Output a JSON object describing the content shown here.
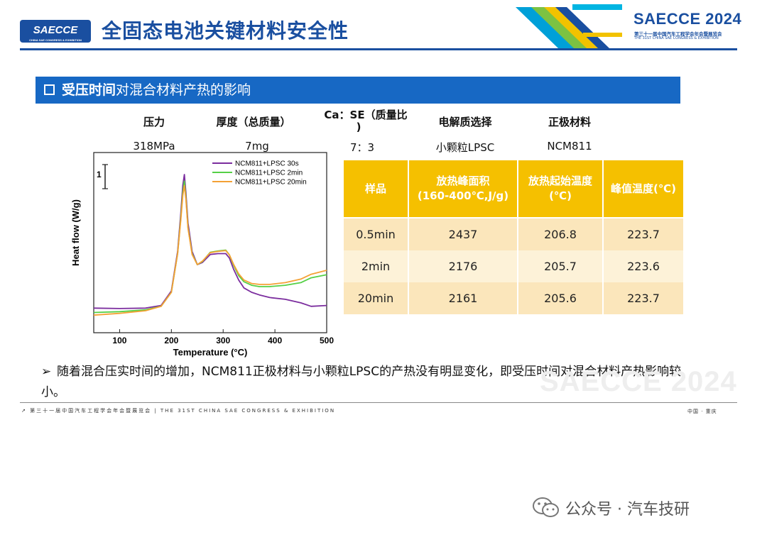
{
  "header": {
    "logo_text": "SAECCE",
    "logo_sub": "CHINA SAE CONGRESS & EXHIBITION",
    "title": "全固态电池关键材料安全性",
    "brand_title": "SAECCE 2024",
    "brand_sub1": "第三十一届中国汽车工程学会年会暨展览会",
    "brand_sub2": "THE 31ST CHINA SAE CONGRESS & EXHIBITION",
    "stripe_colors": [
      "#00a0d8",
      "#f2c200",
      "#7cc242",
      "#1a4fa0",
      "#00b5e2"
    ]
  },
  "section": {
    "bold": "受压时间",
    "rest": "对混合材料产热的影响"
  },
  "params": {
    "headers": [
      "压力",
      "厚度（总质量）",
      "Ca：SE（质量比",
      ")",
      "电解质选择",
      "正极材料"
    ],
    "values": [
      "318MPa",
      "7mg",
      "7：3",
      "小颗粒LPSC",
      "NCM811"
    ]
  },
  "table": {
    "headers": [
      "样品",
      "放热峰面积",
      "(160-400℃,J/g)",
      "放热起始温度",
      "(℃)",
      "峰值温度(℃)"
    ],
    "rows": [
      [
        "0.5min",
        "2437",
        "206.8",
        "223.7"
      ],
      [
        "2min",
        "2176",
        "205.7",
        "223.6"
      ],
      [
        "20min",
        "2161",
        "205.6",
        "223.7"
      ]
    ]
  },
  "chart_data": {
    "type": "line",
    "xlabel": "Temperature (°C)",
    "ylabel": "Heat flow (W/g)",
    "xlim": [
      50,
      500
    ],
    "xticks": [
      100,
      200,
      300,
      400,
      500
    ],
    "scale_label": "1",
    "legend_position": "top-right",
    "series": [
      {
        "name": "NCM811+LPSC 30s",
        "color": "#7b2d9e",
        "x": [
          50,
          100,
          150,
          180,
          200,
          212,
          218,
          222,
          225,
          228,
          232,
          240,
          250,
          260,
          275,
          290,
          305,
          312,
          320,
          330,
          340,
          355,
          370,
          390,
          420,
          450,
          470,
          500
        ],
        "y": [
          0.06,
          0.05,
          0.06,
          0.12,
          0.45,
          1.35,
          2.2,
          2.85,
          3.1,
          2.7,
          2.0,
          1.35,
          1.05,
          1.1,
          1.28,
          1.3,
          1.3,
          1.2,
          0.95,
          0.7,
          0.52,
          0.42,
          0.36,
          0.3,
          0.26,
          0.18,
          0.1,
          0.12
        ]
      },
      {
        "name": "NCM811+LPSC 2min",
        "color": "#55d046",
        "x": [
          50,
          100,
          150,
          180,
          200,
          212,
          218,
          222,
          225,
          228,
          232,
          240,
          250,
          260,
          275,
          290,
          305,
          312,
          320,
          330,
          340,
          355,
          370,
          390,
          420,
          450,
          470,
          500
        ],
        "y": [
          -0.04,
          -0.02,
          0.02,
          0.1,
          0.42,
          1.3,
          2.1,
          2.7,
          2.95,
          2.6,
          1.9,
          1.3,
          1.05,
          1.12,
          1.33,
          1.36,
          1.38,
          1.27,
          1.04,
          0.8,
          0.66,
          0.58,
          0.55,
          0.55,
          0.58,
          0.64,
          0.75,
          0.82
        ]
      },
      {
        "name": "NCM811+LPSC 20min",
        "color": "#f4a135",
        "x": [
          50,
          100,
          150,
          180,
          200,
          212,
          218,
          222,
          225,
          228,
          232,
          240,
          250,
          260,
          275,
          290,
          305,
          312,
          320,
          330,
          340,
          355,
          370,
          390,
          420,
          450,
          470,
          500
        ],
        "y": [
          -0.1,
          -0.06,
          0.0,
          0.1,
          0.42,
          1.3,
          2.05,
          2.62,
          2.85,
          2.55,
          1.88,
          1.28,
          1.05,
          1.13,
          1.32,
          1.35,
          1.37,
          1.27,
          1.06,
          0.84,
          0.7,
          0.62,
          0.6,
          0.6,
          0.64,
          0.72,
          0.83,
          0.92
        ]
      }
    ]
  },
  "bullet": {
    "marker": "➢",
    "text": "随着混合压实时间的增加，NCM811正极材料与小颗粒LPSC的产热没有明显变化，即受压时间对混合材料产热影响较小。"
  },
  "footer": {
    "left": "↗ 第三十一届中国汽车工程学会年会暨展览会 | THE 31ST CHINA SAE CONGRESS & EXHIBITION",
    "right": "中国 · 重庆",
    "watermark": "SAECCE 2024"
  },
  "wechat": {
    "text": "公众号 · 汽车技研"
  }
}
